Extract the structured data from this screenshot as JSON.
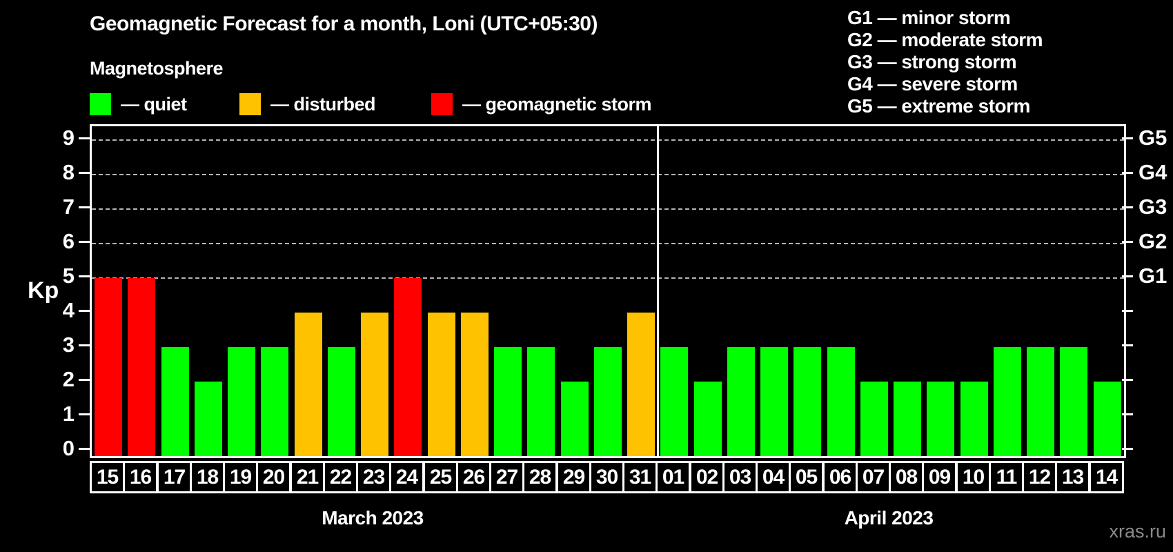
{
  "title": "Geomagnetic Forecast for a month, Loni (UTC+05:30)",
  "subtitle": "Magnetosphere",
  "watermark": "xras.ru",
  "legend": {
    "items": [
      {
        "key": "quiet",
        "label": "— quiet",
        "color": "#00ff00"
      },
      {
        "key": "disturbed",
        "label": "— disturbed",
        "color": "#ffc200"
      },
      {
        "key": "storm",
        "label": "— geomagnetic storm",
        "color": "#ff0000"
      }
    ]
  },
  "g_legend": {
    "lines": [
      "G1 — minor storm",
      "G2 — moderate storm",
      "G3 — strong storm",
      "G4 — severe storm",
      "G5 — extreme storm"
    ]
  },
  "chart_data": {
    "type": "bar",
    "title": "Geomagnetic Forecast for a month, Loni (UTC+05:30)",
    "ylabel": "Kp",
    "ylim": [
      0,
      9
    ],
    "yticks": [
      0,
      1,
      2,
      3,
      4,
      5,
      6,
      7,
      8,
      9
    ],
    "gridlines_at": [
      5,
      6,
      7,
      8,
      9
    ],
    "grid": "dashed",
    "legend_position": "top",
    "right_axis": [
      {
        "value": 5,
        "label": "G1"
      },
      {
        "value": 6,
        "label": "G2"
      },
      {
        "value": 7,
        "label": "G3"
      },
      {
        "value": 8,
        "label": "G4"
      },
      {
        "value": 9,
        "label": "G5"
      }
    ],
    "status_colors": {
      "quiet": "#00ff00",
      "disturbed": "#ffc200",
      "storm": "#ff0000"
    },
    "months": [
      {
        "label": "March 2023",
        "days": [
          "15",
          "16",
          "17",
          "18",
          "19",
          "20",
          "21",
          "22",
          "23",
          "24",
          "25",
          "26",
          "27",
          "28",
          "29",
          "30",
          "31"
        ],
        "values": [
          5,
          5,
          3,
          2,
          3,
          3,
          4,
          3,
          4,
          5,
          4,
          4,
          3,
          3,
          2,
          3,
          4
        ],
        "statuses": [
          "storm",
          "storm",
          "quiet",
          "quiet",
          "quiet",
          "quiet",
          "disturbed",
          "quiet",
          "disturbed",
          "storm",
          "disturbed",
          "disturbed",
          "quiet",
          "quiet",
          "quiet",
          "quiet",
          "disturbed"
        ]
      },
      {
        "label": "April 2023",
        "days": [
          "01",
          "02",
          "03",
          "04",
          "05",
          "06",
          "07",
          "08",
          "09",
          "10",
          "11",
          "12",
          "13",
          "14"
        ],
        "values": [
          3,
          2,
          3,
          3,
          3,
          3,
          2,
          2,
          2,
          2,
          3,
          3,
          3,
          2
        ],
        "statuses": [
          "quiet",
          "quiet",
          "quiet",
          "quiet",
          "quiet",
          "quiet",
          "quiet",
          "quiet",
          "quiet",
          "quiet",
          "quiet",
          "quiet",
          "quiet",
          "quiet"
        ]
      }
    ]
  }
}
